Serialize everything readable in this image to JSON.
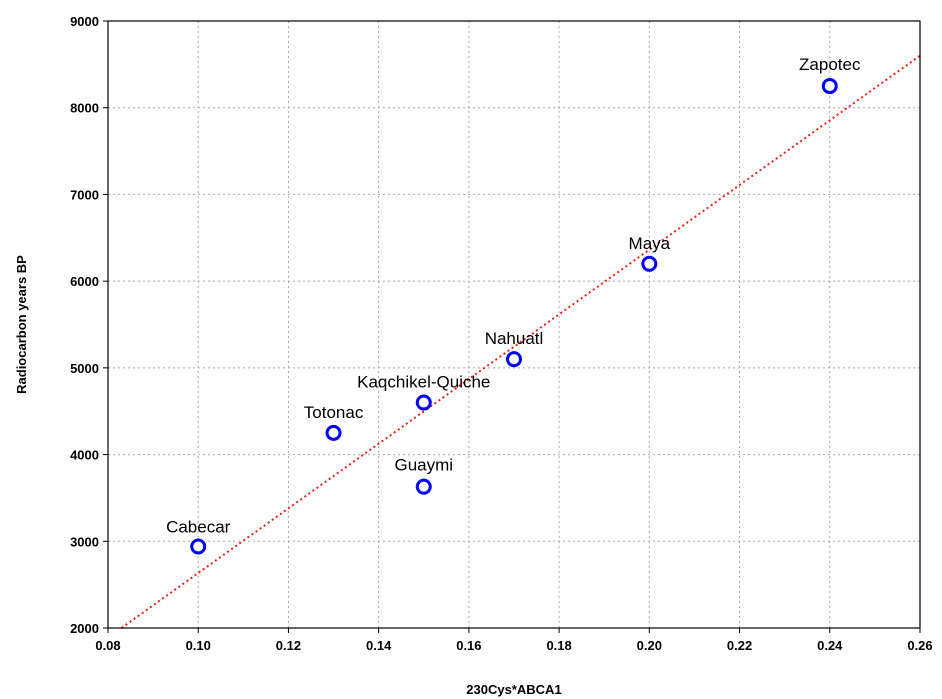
{
  "chart_data": {
    "type": "scatter",
    "title": "",
    "xlabel": "230Cys*ABCA1",
    "ylabel": "Radiocarbon years BP",
    "xlim": [
      0.08,
      0.26
    ],
    "ylim": [
      2000,
      9000
    ],
    "x_ticks": [
      "0.08",
      "0.10",
      "0.12",
      "0.14",
      "0.16",
      "0.18",
      "0.20",
      "0.22",
      "0.24",
      "0.26"
    ],
    "y_ticks": [
      "2000",
      "3000",
      "4000",
      "5000",
      "6000",
      "7000",
      "8000",
      "9000"
    ],
    "grid": true,
    "marker_color": "#0000ff",
    "trendline_color": "#e8201c",
    "points": [
      {
        "label": "Cabecar",
        "x": 0.1,
        "y": 2940
      },
      {
        "label": "Totonac",
        "x": 0.13,
        "y": 4250
      },
      {
        "label": "Kaqchikel-Quiche",
        "x": 0.15,
        "y": 4600
      },
      {
        "label": "Guaymi",
        "x": 0.15,
        "y": 3630
      },
      {
        "label": "Nahuatl",
        "x": 0.17,
        "y": 5100
      },
      {
        "label": "Maya",
        "x": 0.2,
        "y": 6200
      },
      {
        "label": "Zapotec",
        "x": 0.24,
        "y": 8250
      }
    ],
    "trendline": {
      "x": [
        0.083,
        0.26
      ],
      "y": [
        2000,
        8600
      ]
    }
  }
}
